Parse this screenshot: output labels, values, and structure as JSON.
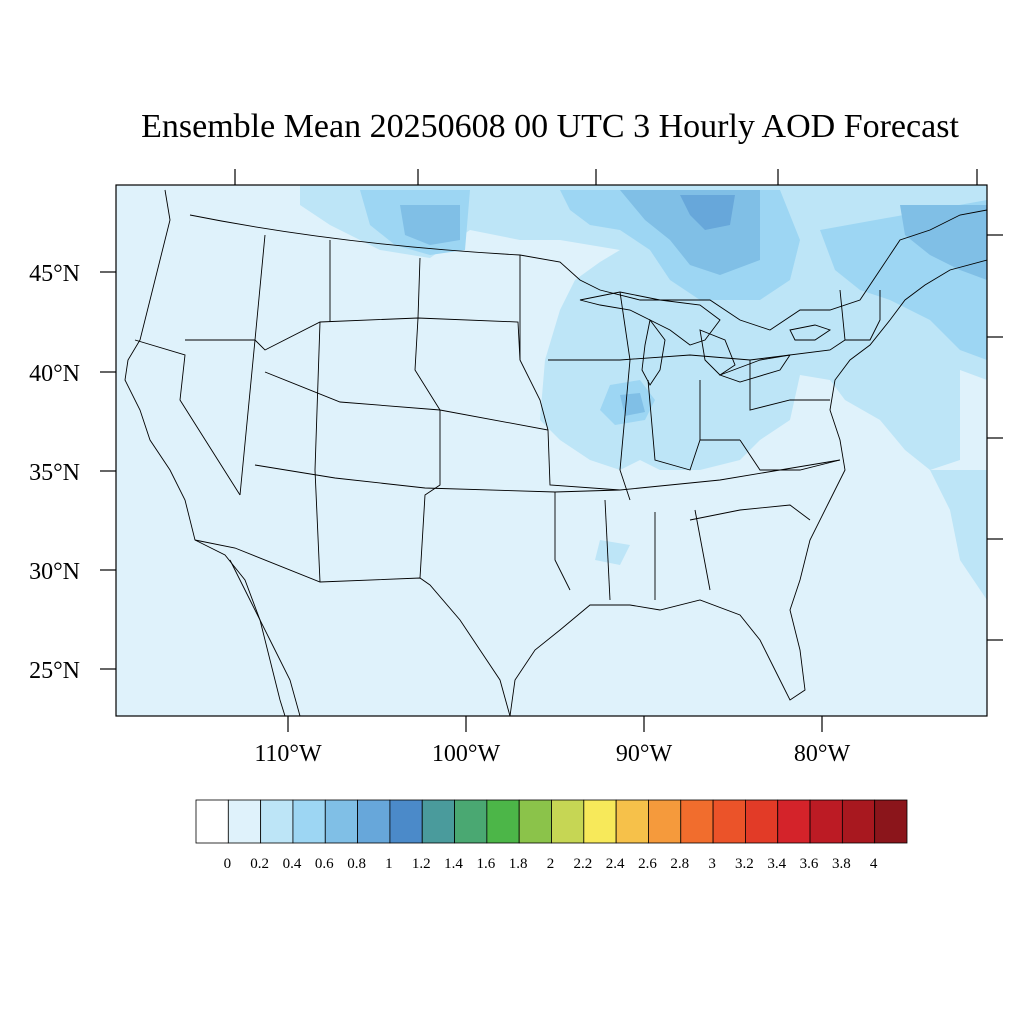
{
  "title": "Ensemble Mean 20250608 00 UTC 3 Hourly AOD Forecast",
  "map": {
    "lat_labels": [
      "45°N",
      "40°N",
      "35°N",
      "30°N",
      "25°N"
    ],
    "lon_labels": [
      "110°W",
      "100°W",
      "90°W",
      "80°W"
    ]
  },
  "colorbar": {
    "tick_labels": [
      "0",
      "0.2",
      "0.4",
      "0.6",
      "0.8",
      "1",
      "1.2",
      "1.4",
      "1.6",
      "1.8",
      "2",
      "2.2",
      "2.4",
      "2.6",
      "2.8",
      "3",
      "3.2",
      "3.4",
      "3.6",
      "3.8",
      "4"
    ],
    "colors": [
      "#ffffff",
      "#dff2fb",
      "#bde5f7",
      "#9dd6f3",
      "#80bfe6",
      "#67a7da",
      "#4b8ac9",
      "#4a9b9c",
      "#4aa872",
      "#4cb648",
      "#8bc34a",
      "#c6d654",
      "#f7e95a",
      "#f6c14a",
      "#f59a3c",
      "#f16d2d",
      "#eb5329",
      "#e23b27",
      "#d4232a",
      "#bc1b24",
      "#a8181f",
      "#8b151b"
    ]
  }
}
